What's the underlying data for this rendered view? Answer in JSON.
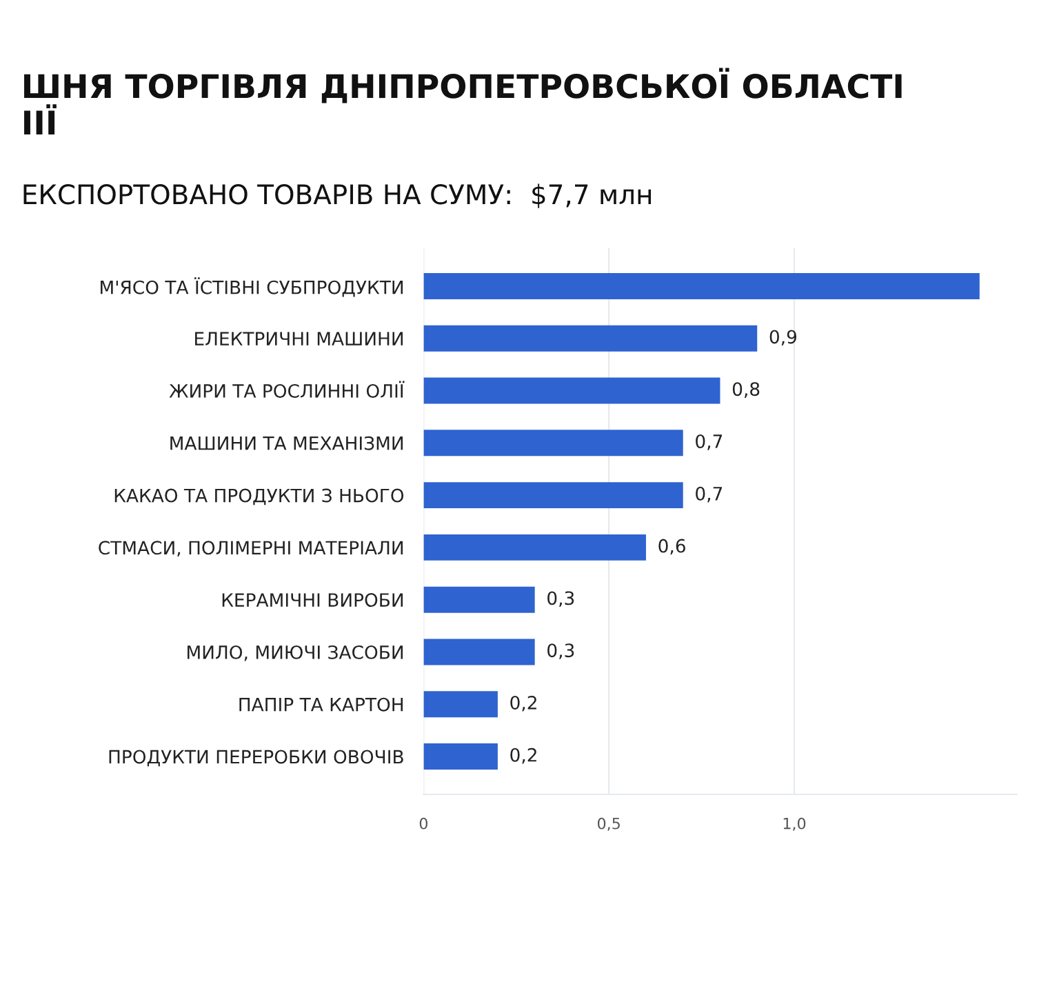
{
  "chart_data": {
    "type": "bar",
    "orientation": "horizontal",
    "title": "ШНЯ ТОРГІВЛЯ ДНІПРОПЕТРОВСЬКОЇ ОБЛАСТІ\nІІЇ",
    "subtitle": "ЕКСПОРТОВАНО ТОВАРІВ НА СУМУ:  $7,7 млн",
    "categories": [
      "М'ЯСО ТА ЇСТІВНІ СУБПРОДУКТИ",
      "ЕЛЕКТРИЧНІ МАШИНИ",
      "ЖИРИ ТА РОСЛИННІ ОЛІЇ",
      "МАШИНИ ТА МЕХАНІЗМИ",
      "КАКАО ТА ПРОДУКТИ З НЬОГО",
      "СТМАСИ, ПОЛІМЕРНІ МАТЕРІАЛИ",
      "КЕРАМІЧНІ ВИРОБИ",
      "МИЛО, МИЮЧІ ЗАСОБИ",
      "ПАПІР ТА КАРТОН",
      "ПРОДУКТИ ПЕРЕРОБКИ ОВОЧІВ"
    ],
    "values": [
      1.5,
      0.9,
      0.8,
      0.7,
      0.7,
      0.6,
      0.3,
      0.3,
      0.2,
      0.2
    ],
    "value_labels": [
      null,
      "0,9",
      "0,8",
      "0,7",
      "0,7",
      "0,6",
      "0,3",
      "0,3",
      "0,2",
      "0,2"
    ],
    "color": "#2f63d0",
    "xlim": [
      0,
      1.6
    ],
    "xticks": [
      {
        "value": 0,
        "label": "0"
      },
      {
        "value": 0.5,
        "label": "0,5"
      },
      {
        "value": 1.0,
        "label": "1,0"
      }
    ],
    "grid": "x"
  }
}
